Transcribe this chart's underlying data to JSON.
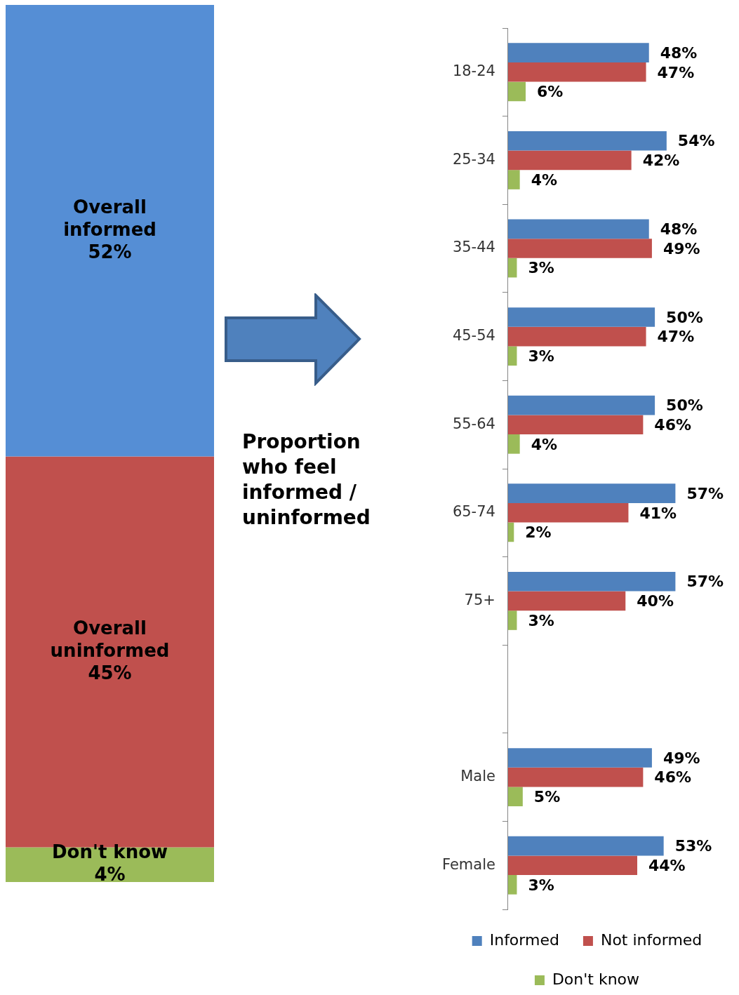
{
  "chart_data": [
    {
      "type": "bar",
      "stacked": true,
      "tick_labels": false,
      "categories": [
        null
      ],
      "series": [
        {
          "color": "#9bbb59",
          "values": [
            4
          ],
          "value_labels": [
            "Don't know 4%"
          ]
        },
        {
          "color": "#c0504d",
          "values": [
            45
          ],
          "value_labels": [
            "Overall uninformed 45%"
          ]
        },
        {
          "color": "#558ed5",
          "values": [
            52
          ],
          "value_labels": [
            "Overall informed 52%"
          ]
        }
      ]
    },
    {
      "type": "bar",
      "orientation": "horizontal",
      "title": "Proportion who feel informed / uninformed",
      "tick_labels": "y",
      "legend": "bottom",
      "categories": [
        "18-24",
        "25-34",
        "35-44",
        "45-54",
        "55-64",
        "65-74",
        "75+",
        null,
        "Male",
        "Female"
      ],
      "series": [
        {
          "name": "Informed",
          "color": "#4f81bd",
          "values": [
            48,
            54,
            48,
            50,
            50,
            57,
            57,
            null,
            49,
            53
          ],
          "value_labels": [
            "48%",
            "54%",
            "48%",
            "50%",
            "50%",
            "57%",
            "57%",
            null,
            "49%",
            "53%"
          ]
        },
        {
          "name": "Not informed",
          "color": "#c0504d",
          "values": [
            47,
            42,
            49,
            47,
            46,
            41,
            40,
            null,
            46,
            44
          ],
          "value_labels": [
            "47%",
            "42%",
            "49%",
            "47%",
            "46%",
            "41%",
            "40%",
            null,
            "46%",
            "44%"
          ]
        },
        {
          "name": "Don't know",
          "color": "#9bbb59",
          "values": [
            6,
            4,
            3,
            3,
            4,
            2,
            3,
            null,
            5,
            3
          ],
          "value_labels": [
            "6%",
            "4%",
            "3%",
            "3%",
            "4%",
            "2%",
            "3%",
            null,
            "5%",
            "3%"
          ]
        }
      ]
    }
  ]
}
